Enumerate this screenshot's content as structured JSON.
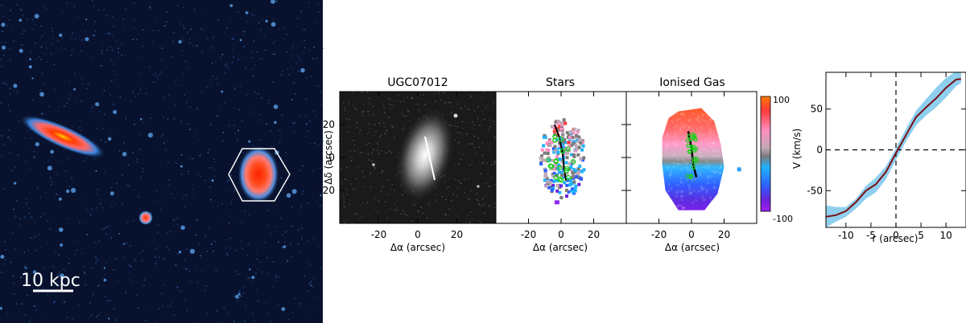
{
  "sky_image": {
    "scalebar_label": "10 kpc"
  },
  "panels": {
    "image": {
      "title": "UGC07012"
    },
    "stars": {
      "title": "Stars"
    },
    "gas": {
      "title": "Ionised Gas"
    }
  },
  "map_axes": {
    "xlabel": "Δα (arcsec)",
    "ylabel": "Δδ (arcsec)",
    "xticks": [
      "-20",
      "0",
      "20"
    ],
    "yticks": [
      "20",
      "0",
      "-20"
    ],
    "xlim": [
      -40,
      40
    ],
    "ylim": [
      -40,
      40
    ]
  },
  "colorbar": {
    "max_label": "100",
    "min_label": "-100",
    "colors": [
      "#ff7a00",
      "#ff3a3a",
      "#ff8fc0",
      "#c0a9b8",
      "#7a7a7a",
      "#1fb2ff",
      "#2f5fff",
      "#6a22d8",
      "#a01ef0"
    ]
  },
  "chart_data": {
    "type": "line",
    "xlabel": "r (arcsec)",
    "ylabel": "V (km/s)",
    "xlim": [
      -14,
      14
    ],
    "ylim": [
      -95,
      95
    ],
    "xticks": [
      "-10",
      "-5",
      "0",
      "5",
      "10"
    ],
    "yticks": [
      "50",
      "0",
      "-50"
    ],
    "series": [
      {
        "color": "#7a0f14",
        "x": [
          -14,
          -12,
          -10,
          -8,
          -6,
          -4,
          -2,
          0,
          2,
          4,
          6,
          8,
          10,
          12,
          13
        ],
        "y": [
          -82,
          -80,
          -75,
          -64,
          -50,
          -42,
          -27,
          -4,
          18,
          40,
          52,
          63,
          76,
          86,
          87
        ]
      }
    ],
    "band": {
      "color": "#8ecfee",
      "x": [
        -14,
        -12,
        -10,
        -8,
        -6,
        -4,
        -2,
        0,
        2,
        4,
        6,
        8,
        10,
        12,
        13
      ],
      "upper": [
        -68,
        -70,
        -70,
        -60,
        -44,
        -34,
        -20,
        2,
        26,
        48,
        62,
        76,
        88,
        96,
        97
      ],
      "lower": [
        -95,
        -88,
        -82,
        -72,
        -60,
        -52,
        -36,
        -12,
        10,
        30,
        42,
        52,
        64,
        78,
        82
      ]
    }
  }
}
